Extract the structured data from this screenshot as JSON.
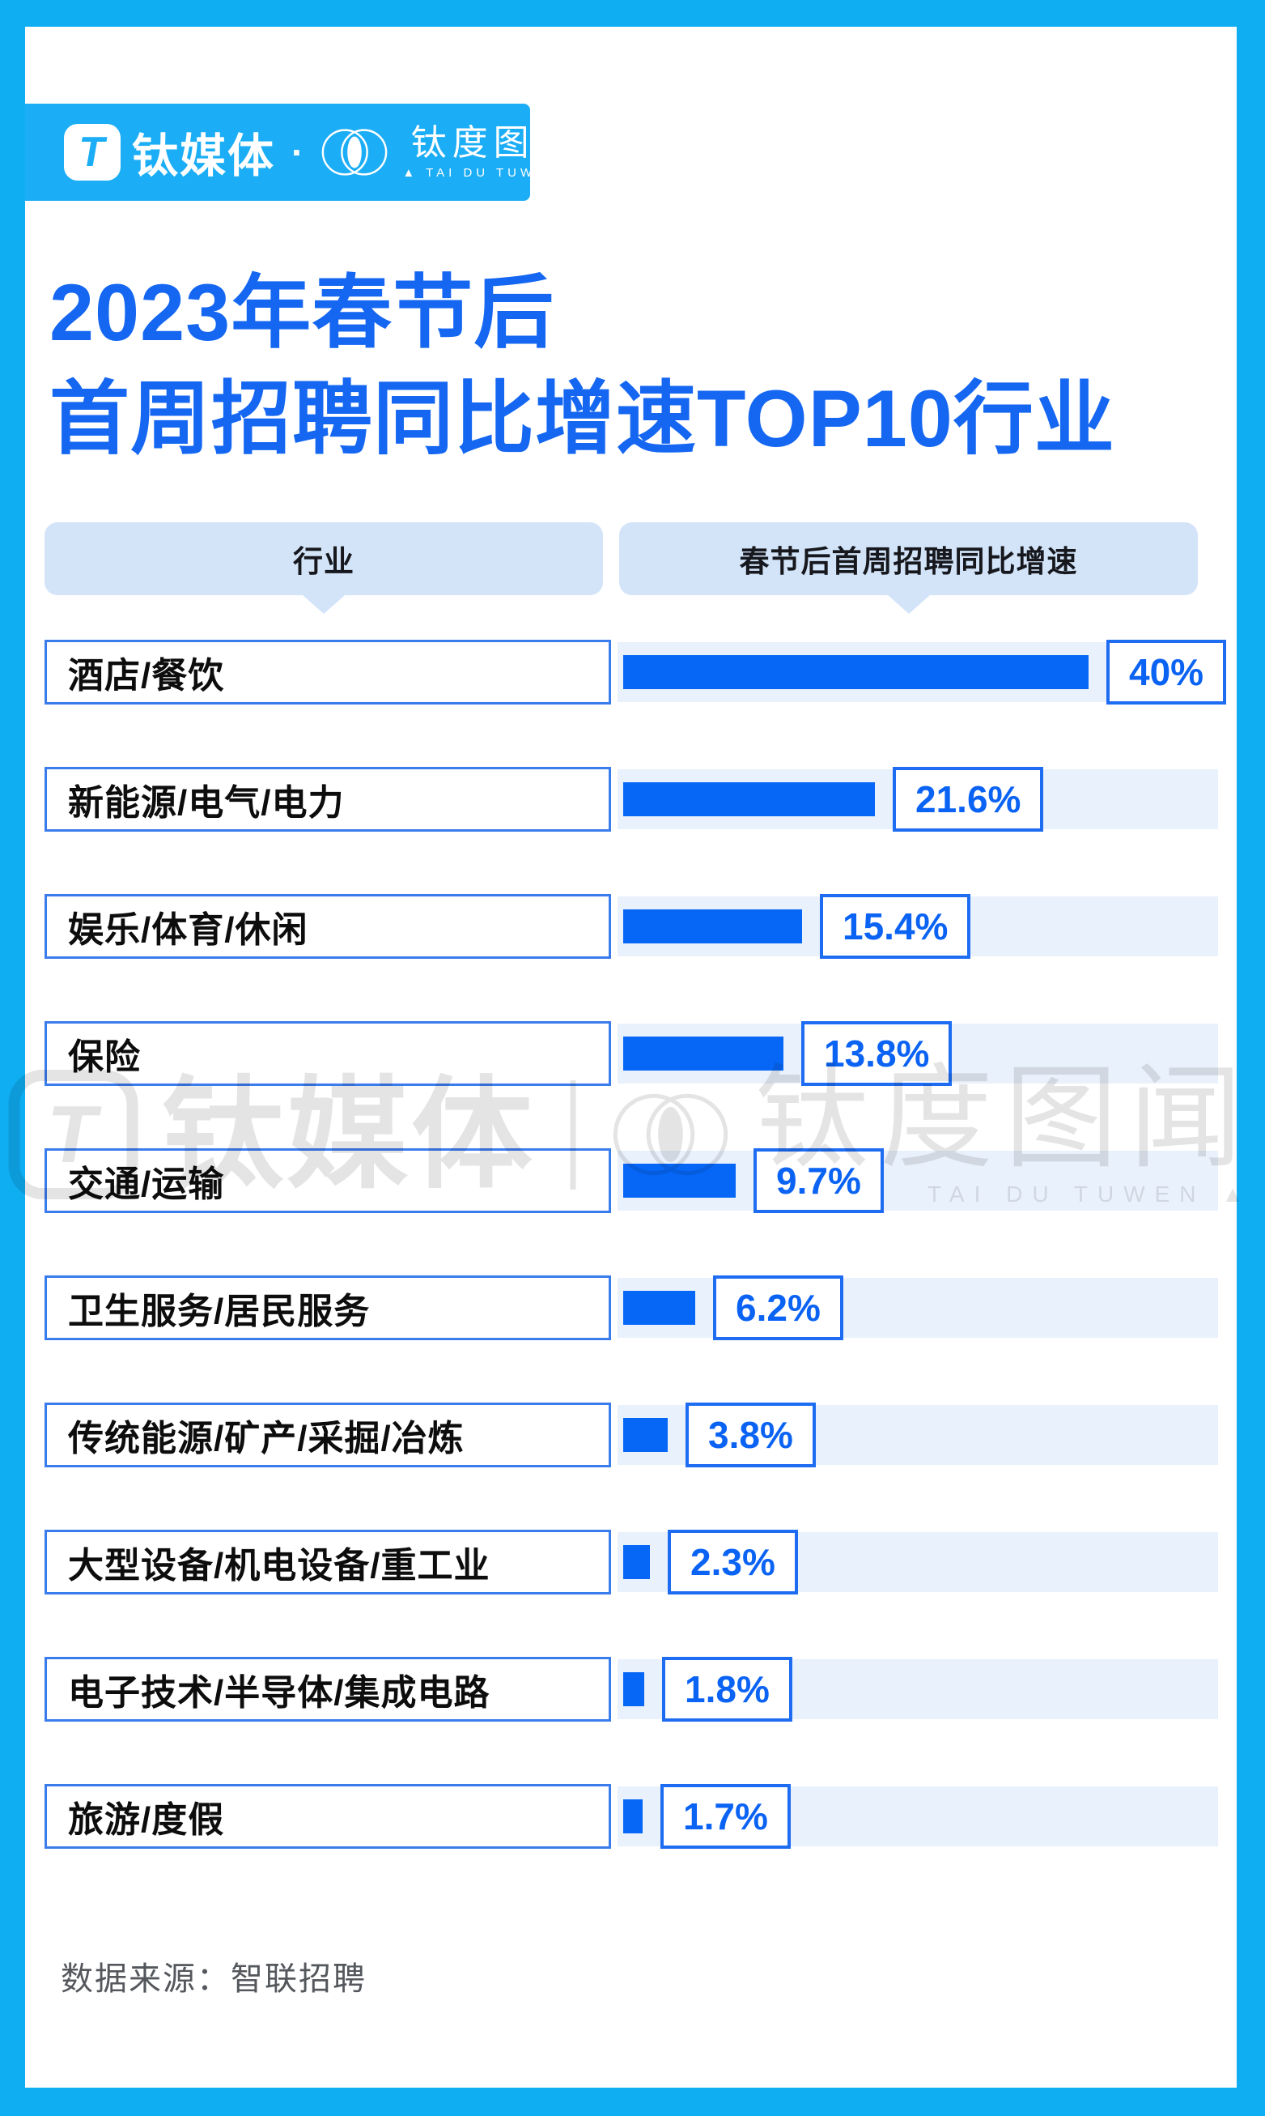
{
  "brand": {
    "logo_letter": "T",
    "name": "钛媒体",
    "dot": "·",
    "sub_logo": "钛度图闻",
    "sub_latin": "▲ TAI DU TUWEN ▲"
  },
  "title": {
    "line1": "2023年春节后",
    "line2": "首周招聘同比增速TOP10行业"
  },
  "table": {
    "col_industry": "行业",
    "col_growth": "春节后首周招聘同比增速"
  },
  "rows": [
    {
      "industry": "酒店/餐饮",
      "growth": 40,
      "growth_label": "40%"
    },
    {
      "industry": "新能源/电气/电力",
      "growth": 21.6,
      "growth_label": "21.6%"
    },
    {
      "industry": "娱乐/体育/休闲",
      "growth": 15.4,
      "growth_label": "15.4%"
    },
    {
      "industry": "保险",
      "growth": 13.8,
      "growth_label": "13.8%"
    },
    {
      "industry": "交通/运输",
      "growth": 9.7,
      "growth_label": "9.7%"
    },
    {
      "industry": "卫生服务/居民服务",
      "growth": 6.2,
      "growth_label": "6.2%"
    },
    {
      "industry": "传统能源/矿产/采掘/冶炼",
      "growth": 3.8,
      "growth_label": "3.8%"
    },
    {
      "industry": "大型设备/机电设备/重工业",
      "growth": 2.3,
      "growth_label": "2.3%"
    },
    {
      "industry": "电子技术/半导体/集成电路",
      "growth": 1.8,
      "growth_label": "1.8%"
    },
    {
      "industry": "旅游/度假",
      "growth": 1.7,
      "growth_label": "1.7%"
    }
  ],
  "watermark": {
    "logo_letter": "T",
    "brand": "钛媒体",
    "sub": "钛度图闻",
    "latin": "TAI DU TUWEN ▲"
  },
  "source": {
    "text": "数据来源：智联招聘"
  },
  "colors": {
    "frame": "#0fadf2",
    "banner": "#1badf5",
    "title_blue": "#1567f2",
    "bar_blue": "#0667f7",
    "value_blue": "#0b63f4",
    "track": "#e9f1fc",
    "pill_bg": "#d3e4f9",
    "label_border": "#3b7ced",
    "value_border": "#1d6cf2",
    "source_gray": "#54575c"
  },
  "chart_data": {
    "type": "bar",
    "orientation": "horizontal",
    "title": "2023年春节后首周招聘同比增速TOP10行业",
    "categories": [
      "酒店/餐饮",
      "新能源/电气/电力",
      "娱乐/体育/休闲",
      "保险",
      "交通/运输",
      "卫生服务/居民服务",
      "传统能源/矿产/采掘/冶炼",
      "大型设备/机电设备/重工业",
      "电子技术/半导体/集成电路",
      "旅游/度假"
    ],
    "values": [
      40,
      21.6,
      15.4,
      13.8,
      9.7,
      6.2,
      3.8,
      2.3,
      1.8,
      1.7
    ],
    "value_labels": [
      "40%",
      "21.6%",
      "15.4%",
      "13.8%",
      "9.7%",
      "6.2%",
      "3.8%",
      "2.3%",
      "1.8%",
      "1.7%"
    ],
    "unit": "%",
    "xlabel": "春节后首周招聘同比增速",
    "ylabel": "行业",
    "xlim": [
      0,
      40
    ],
    "grid": false,
    "legend": false,
    "source": "智联招聘"
  }
}
